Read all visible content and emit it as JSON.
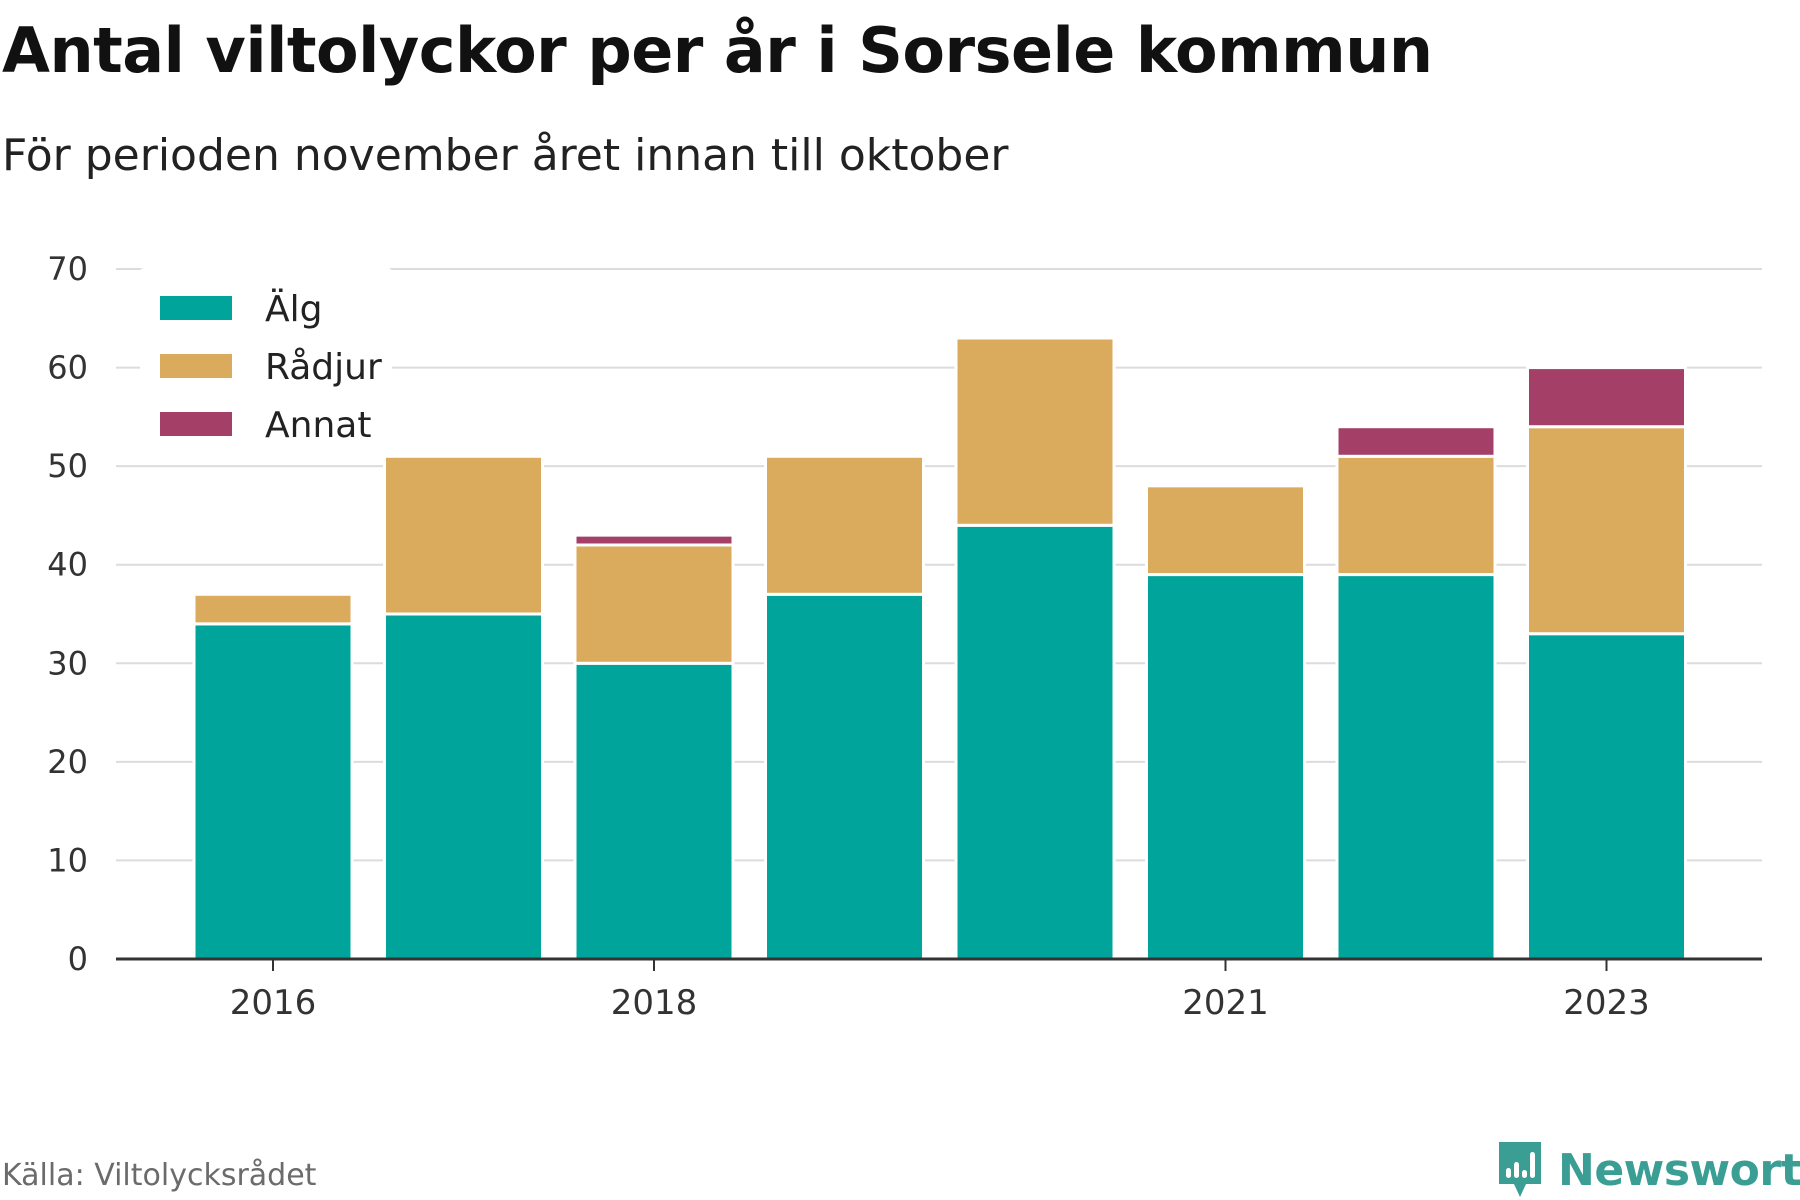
{
  "header": {
    "title": "Antal viltolyckor per år i Sorsele kommun",
    "subtitle": "För perioden november året innan till oktober"
  },
  "footer": {
    "source": "Källa: Viltolycksrådet",
    "brand": "Newsworthy"
  },
  "colors": {
    "alg": "#00a49a",
    "radjur": "#daab5c",
    "annat": "#a44068",
    "brand": "#3a9e95",
    "grid": "#dcdcdc",
    "axis": "#333333"
  },
  "chart_data": {
    "type": "bar",
    "stacked": true,
    "categories": [
      "2016",
      "2017",
      "2018",
      "2019",
      "2020",
      "2021",
      "2022",
      "2023"
    ],
    "tick_labels": [
      "2016",
      "",
      "2018",
      "",
      "",
      "2021",
      "",
      "2023"
    ],
    "series": [
      {
        "name": "Älg",
        "color": "#00a49a",
        "values": [
          34,
          35,
          30,
          37,
          44,
          39,
          39,
          33
        ]
      },
      {
        "name": "Rådjur",
        "color": "#daab5c",
        "values": [
          3,
          16,
          12,
          14,
          19,
          9,
          12,
          21
        ]
      },
      {
        "name": "Annat",
        "color": "#a44068",
        "values": [
          0,
          0,
          1,
          0,
          0,
          0,
          3,
          6
        ]
      }
    ],
    "ylim": [
      0,
      70
    ],
    "yticks": [
      0,
      10,
      20,
      30,
      40,
      50,
      60,
      70
    ],
    "grid": true,
    "legend": "top-left"
  }
}
